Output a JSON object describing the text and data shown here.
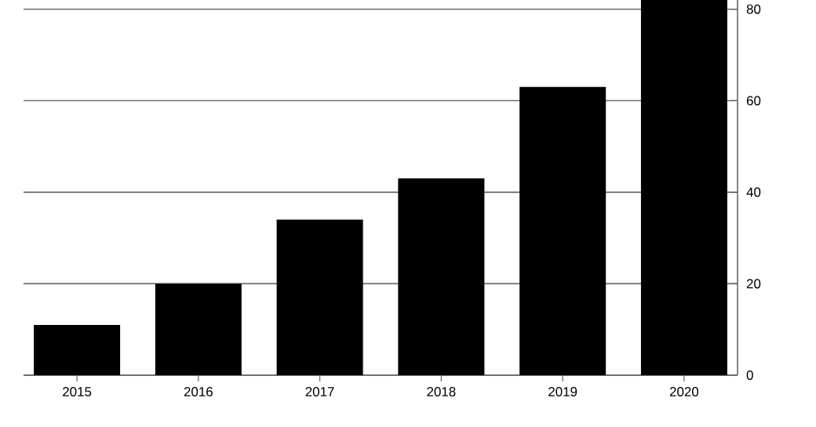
{
  "chart_data": {
    "type": "bar",
    "categories": [
      "2015",
      "2016",
      "2017",
      "2018",
      "2019",
      "2020"
    ],
    "values": [
      11,
      20,
      34,
      43,
      63,
      82
    ],
    "color": "#000000",
    "ylim": [
      0,
      82
    ],
    "yticks": [
      0,
      20,
      40,
      60,
      80
    ],
    "grid": "y"
  }
}
